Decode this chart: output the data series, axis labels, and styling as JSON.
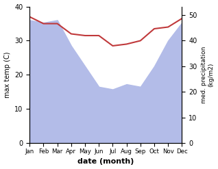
{
  "months": [
    "Jan",
    "Feb",
    "Mar",
    "Apr",
    "May",
    "Jun",
    "Jul",
    "Aug",
    "Sep",
    "Oct",
    "Nov",
    "Dec"
  ],
  "x": [
    0,
    1,
    2,
    3,
    4,
    5,
    6,
    7,
    8,
    9,
    10,
    11
  ],
  "precipitation": [
    48,
    47,
    48,
    38,
    30,
    22,
    21,
    23,
    22,
    30,
    40,
    47
  ],
  "temperature": [
    37,
    35,
    35,
    32,
    31.5,
    31.5,
    28.5,
    29,
    30,
    33.5,
    34,
    36.5
  ],
  "precip_color": "#b3bce8",
  "temp_color": "#c0393b",
  "ylabel_left": "max temp (C)",
  "ylabel_right": "med. precipitation\n(kg/m2)",
  "xlabel": "date (month)",
  "ylim_left": [
    0,
    40
  ],
  "ylim_right": [
    0,
    53.3
  ],
  "yticks_left": [
    0,
    10,
    20,
    30,
    40
  ],
  "yticks_right": [
    0,
    10,
    20,
    30,
    40,
    50
  ],
  "bg_color": "#ffffff"
}
